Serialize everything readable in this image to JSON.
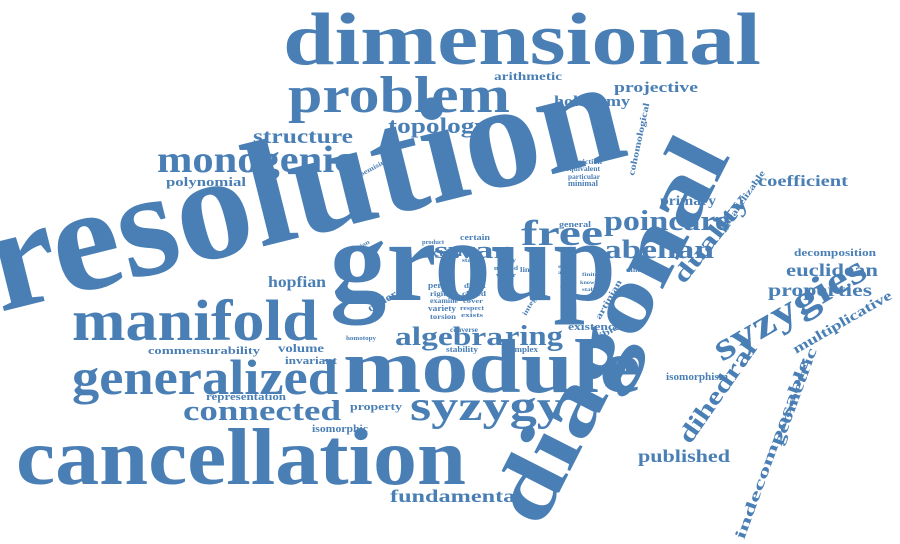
{
  "word_color": "#4a7fb5",
  "background_color": "#ffffff",
  "words": {
    "resolution": "resolution",
    "dimensional": "dimensional",
    "diagonal": "diagonal",
    "group": "group",
    "module": "module",
    "cancellation": "cancellation",
    "manifold": "manifold",
    "generalized": "generalized",
    "problem": "problem",
    "syzygy": "syzygy",
    "syzygies": "syzygies",
    "monogenic": "monogenic",
    "connected": "connected",
    "free": "free",
    "poincare": "poincare",
    "abelian": "abelian",
    "duality": "duality",
    "ring": "ring",
    "algebra": "algebra",
    "swan": "swan",
    "dihedral": "dihedral",
    "topology": "topology",
    "structure": "structure",
    "euclidean": "euclidean",
    "properties": "properties",
    "fundamental": "fundamental",
    "published": "published",
    "coefficient": "coefficient",
    "hopfian": "hopfian",
    "projective": "projective",
    "holonomy": "holonomy",
    "arithmetic": "arithmetic",
    "polynomial": "polynomial",
    "indecomposable": "indecomposable",
    "geometric": "geometric",
    "multiplicative": "multiplicative",
    "primary": "primary",
    "volume": "volume",
    "invariant": "invariant",
    "commensurability": "commensurability",
    "representation": "representation",
    "isomorphic": "isomorphic",
    "property": "property",
    "order": "order",
    "action": "action",
    "decomposition": "decomposition",
    "isomorphism": "isomorphism",
    "existence": "existence",
    "possible": "possible",
    "artinian": "artinian",
    "parallelizable": "parallelizable",
    "cohomological": "cohomological",
    "restriction": "restriction",
    "equivalent": "equivalent",
    "particular": "particular",
    "minimal": "minimal",
    "general": "general",
    "dimension": "dimension",
    "certain": "certain",
    "semisimple": "semisimple",
    "condition": "condition",
    "product": "product",
    "stage": "stage",
    "period": "period",
    "rigidity": "rigidity",
    "examine": "examine",
    "variety": "variety",
    "torsion": "torsion",
    "direct": "direct",
    "closed": "closed",
    "cover": "cover",
    "respect": "respect",
    "exists": "exists",
    "linear": "linear",
    "integral": "integral",
    "homotopy": "homotopy",
    "converse": "converse",
    "stability": "stability",
    "complex": "complex",
    "study": "study",
    "method": "method",
    "vector": "vector",
    "extra": "extra",
    "admit": "admit",
    "finite": "finite",
    "one": "one",
    "case": "case",
    "known": "known",
    "stably": "stably",
    "two": "two"
  }
}
